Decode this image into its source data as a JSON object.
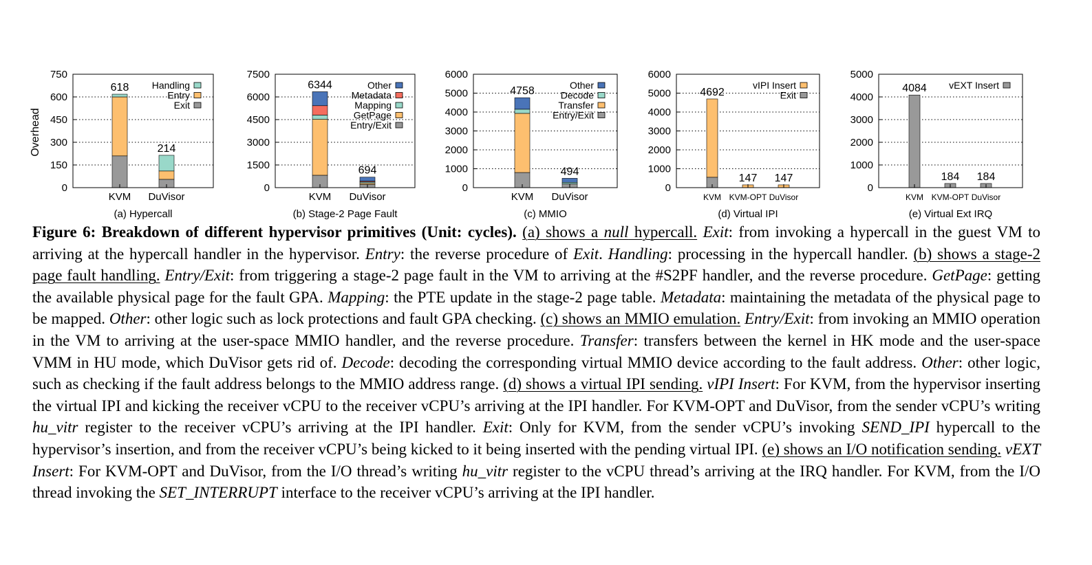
{
  "chart_data": [
    {
      "type": "bar",
      "stacked": true,
      "subtitle": "(a) Hypercall",
      "ylabel": "Overhead",
      "ylim": [
        0,
        750
      ],
      "yticks": [
        0,
        150,
        300,
        450,
        600,
        750
      ],
      "categories": [
        "KVM",
        "DuVisor"
      ],
      "totals": [
        618,
        214
      ],
      "legend_position": "top-right",
      "grid": true,
      "series": [
        {
          "name": "Exit",
          "color": "#999999",
          "values": [
            210,
            55
          ]
        },
        {
          "name": "Entry",
          "color": "#fdbf6f",
          "values": [
            390,
            55
          ]
        },
        {
          "name": "Handling",
          "color": "#99d8c9",
          "values": [
            18,
            104
          ]
        }
      ]
    },
    {
      "type": "bar",
      "stacked": true,
      "subtitle": "(b) Stage-2 Page Fault",
      "ylabel": "",
      "ylim": [
        0,
        7500
      ],
      "yticks": [
        0,
        1500,
        3000,
        4500,
        6000,
        7500
      ],
      "categories": [
        "KVM",
        "DuVisor"
      ],
      "totals": [
        6344,
        694
      ],
      "legend_position": "top-right",
      "grid": true,
      "series": [
        {
          "name": "Entry/Exit",
          "color": "#999999",
          "values": [
            820,
            210
          ]
        },
        {
          "name": "GetPage",
          "color": "#fdbf6f",
          "values": [
            3700,
            80
          ]
        },
        {
          "name": "Mapping",
          "color": "#99d8c9",
          "values": [
            280,
            80
          ]
        },
        {
          "name": "Metadata",
          "color": "#f46d5e",
          "values": [
            620,
            60
          ]
        },
        {
          "name": "Other",
          "color": "#4a74b8",
          "values": [
            924,
            264
          ]
        }
      ]
    },
    {
      "type": "bar",
      "stacked": true,
      "subtitle": "(c) MMIO",
      "ylabel": "",
      "ylim": [
        0,
        6000
      ],
      "yticks": [
        0,
        1000,
        2000,
        3000,
        4000,
        5000,
        6000
      ],
      "categories": [
        "KVM",
        "DuVisor"
      ],
      "totals": [
        4758,
        494
      ],
      "legend_position": "top-right",
      "grid": true,
      "series": [
        {
          "name": "Entry/Exit",
          "color": "#999999",
          "values": [
            800,
            200
          ]
        },
        {
          "name": "Transfer",
          "color": "#fdbf6f",
          "values": [
            3130,
            0
          ]
        },
        {
          "name": "Decode",
          "color": "#99d8c9",
          "values": [
            220,
            80
          ]
        },
        {
          "name": "Other",
          "color": "#4a74b8",
          "values": [
            608,
            214
          ]
        }
      ]
    },
    {
      "type": "bar",
      "stacked": true,
      "subtitle": "(d) Virtual IPI",
      "ylabel": "",
      "ylim": [
        0,
        6000
      ],
      "yticks": [
        0,
        1000,
        2000,
        3000,
        4000,
        5000,
        6000
      ],
      "categories": [
        "KVM",
        "KVM-OPT",
        "DuVisor"
      ],
      "totals": [
        4692,
        147,
        147
      ],
      "legend_position": "top-right",
      "grid": true,
      "series": [
        {
          "name": "Exit",
          "color": "#999999",
          "values": [
            550,
            0,
            0
          ]
        },
        {
          "name": "vIPI Insert",
          "color": "#fdbf6f",
          "values": [
            4142,
            147,
            147
          ]
        }
      ]
    },
    {
      "type": "bar",
      "stacked": true,
      "subtitle": "(e) Virtual Ext IRQ",
      "ylabel": "",
      "ylim": [
        0,
        5000
      ],
      "yticks": [
        0,
        1000,
        2000,
        3000,
        4000,
        5000
      ],
      "categories": [
        "KVM",
        "KVM-OPT",
        "DuVisor"
      ],
      "totals": [
        4084,
        184,
        184
      ],
      "legend_position": "top-right",
      "grid": true,
      "series": [
        {
          "name": "vEXT Insert",
          "color": "#999999",
          "values": [
            4084,
            184,
            184
          ]
        }
      ]
    }
  ],
  "caption": [
    {
      "t": "Figure 6: Breakdown of different hypervisor primitives (Unit: cycles).",
      "s": "b"
    },
    {
      "t": " ",
      "s": ""
    },
    {
      "t": "(a) shows a ",
      "s": "u"
    },
    {
      "t": "null",
      "s": "i u"
    },
    {
      "t": " hypercall.",
      "s": "u"
    },
    {
      "t": " ",
      "s": ""
    },
    {
      "t": "Exit",
      "s": "i"
    },
    {
      "t": ": from invoking a hypercall in the guest VM to arriving at the hypercall handler in the hypervisor. ",
      "s": ""
    },
    {
      "t": "Entry",
      "s": "i"
    },
    {
      "t": ": the reverse procedure of ",
      "s": ""
    },
    {
      "t": "Exit",
      "s": "i"
    },
    {
      "t": ". ",
      "s": ""
    },
    {
      "t": "Handling",
      "s": "i"
    },
    {
      "t": ": processing in the hypercall handler. ",
      "s": ""
    },
    {
      "t": "(b) shows a stage-2 page fault handling.",
      "s": "u"
    },
    {
      "t": " ",
      "s": ""
    },
    {
      "t": "Entry/Exit",
      "s": "i"
    },
    {
      "t": ": from triggering a stage-2 page fault in the VM to arriving at the #S2PF handler, and the reverse procedure. ",
      "s": ""
    },
    {
      "t": "GetPage",
      "s": "i"
    },
    {
      "t": ": getting the available physical page for the fault GPA. ",
      "s": ""
    },
    {
      "t": "Mapping",
      "s": "i"
    },
    {
      "t": ": the PTE update in the stage-2 page table. ",
      "s": ""
    },
    {
      "t": "Metadata",
      "s": "i"
    },
    {
      "t": ": maintaining the metadata of the physical page to be mapped. ",
      "s": ""
    },
    {
      "t": "Other",
      "s": "i"
    },
    {
      "t": ": other logic such as lock protections and fault GPA checking. ",
      "s": ""
    },
    {
      "t": "(c) shows an MMIO emulation.",
      "s": "u"
    },
    {
      "t": " ",
      "s": ""
    },
    {
      "t": "Entry/Exit",
      "s": "i"
    },
    {
      "t": ": from invoking an MMIO operation in the VM to arriving at the user-space MMIO handler, and the reverse procedure. ",
      "s": ""
    },
    {
      "t": "Transfer",
      "s": "i"
    },
    {
      "t": ": transfers between the kernel in HK mode and the user-space VMM in HU mode, which DuVisor gets rid of. ",
      "s": ""
    },
    {
      "t": "Decode",
      "s": "i"
    },
    {
      "t": ": decoding the corresponding virtual MMIO device according to the fault address. ",
      "s": ""
    },
    {
      "t": "Other",
      "s": "i"
    },
    {
      "t": ": other logic, such as checking if the fault address belongs to the MMIO address range. ",
      "s": ""
    },
    {
      "t": "(d) shows a virtual IPI sending.",
      "s": "u"
    },
    {
      "t": " ",
      "s": ""
    },
    {
      "t": "vIPI Insert",
      "s": "i"
    },
    {
      "t": ": For KVM, from the hypervisor inserting the virtual IPI and kicking the receiver vCPU to the receiver vCPU’s arriving at the IPI handler. For KVM-OPT and DuVisor, from the sender vCPU’s writing ",
      "s": ""
    },
    {
      "t": "hu_vitr",
      "s": "i"
    },
    {
      "t": " register to the receiver vCPU’s arriving at the IPI handler. ",
      "s": ""
    },
    {
      "t": "Exit",
      "s": "i"
    },
    {
      "t": ": Only for KVM, from the sender vCPU’s invoking ",
      "s": ""
    },
    {
      "t": "SEND_IPI",
      "s": "i"
    },
    {
      "t": " hypercall to the hypervisor’s insertion, and from the receiver vCPU’s being kicked to it being inserted with the pending virtual IPI. ",
      "s": ""
    },
    {
      "t": "(e) shows an I/O notification sending.",
      "s": "u"
    },
    {
      "t": " ",
      "s": ""
    },
    {
      "t": "vEXT Insert",
      "s": "i"
    },
    {
      "t": ": For KVM-OPT and DuVisor, from the I/O thread’s writing ",
      "s": ""
    },
    {
      "t": "hu_vitr",
      "s": "i"
    },
    {
      "t": " register to the vCPU thread’s arriving at the IRQ handler. For KVM, from the I/O thread invoking the ",
      "s": ""
    },
    {
      "t": "SET_INTERRUPT",
      "s": "i"
    },
    {
      "t": " interface to the receiver vCPU’s arriving at the IPI handler.",
      "s": ""
    }
  ]
}
